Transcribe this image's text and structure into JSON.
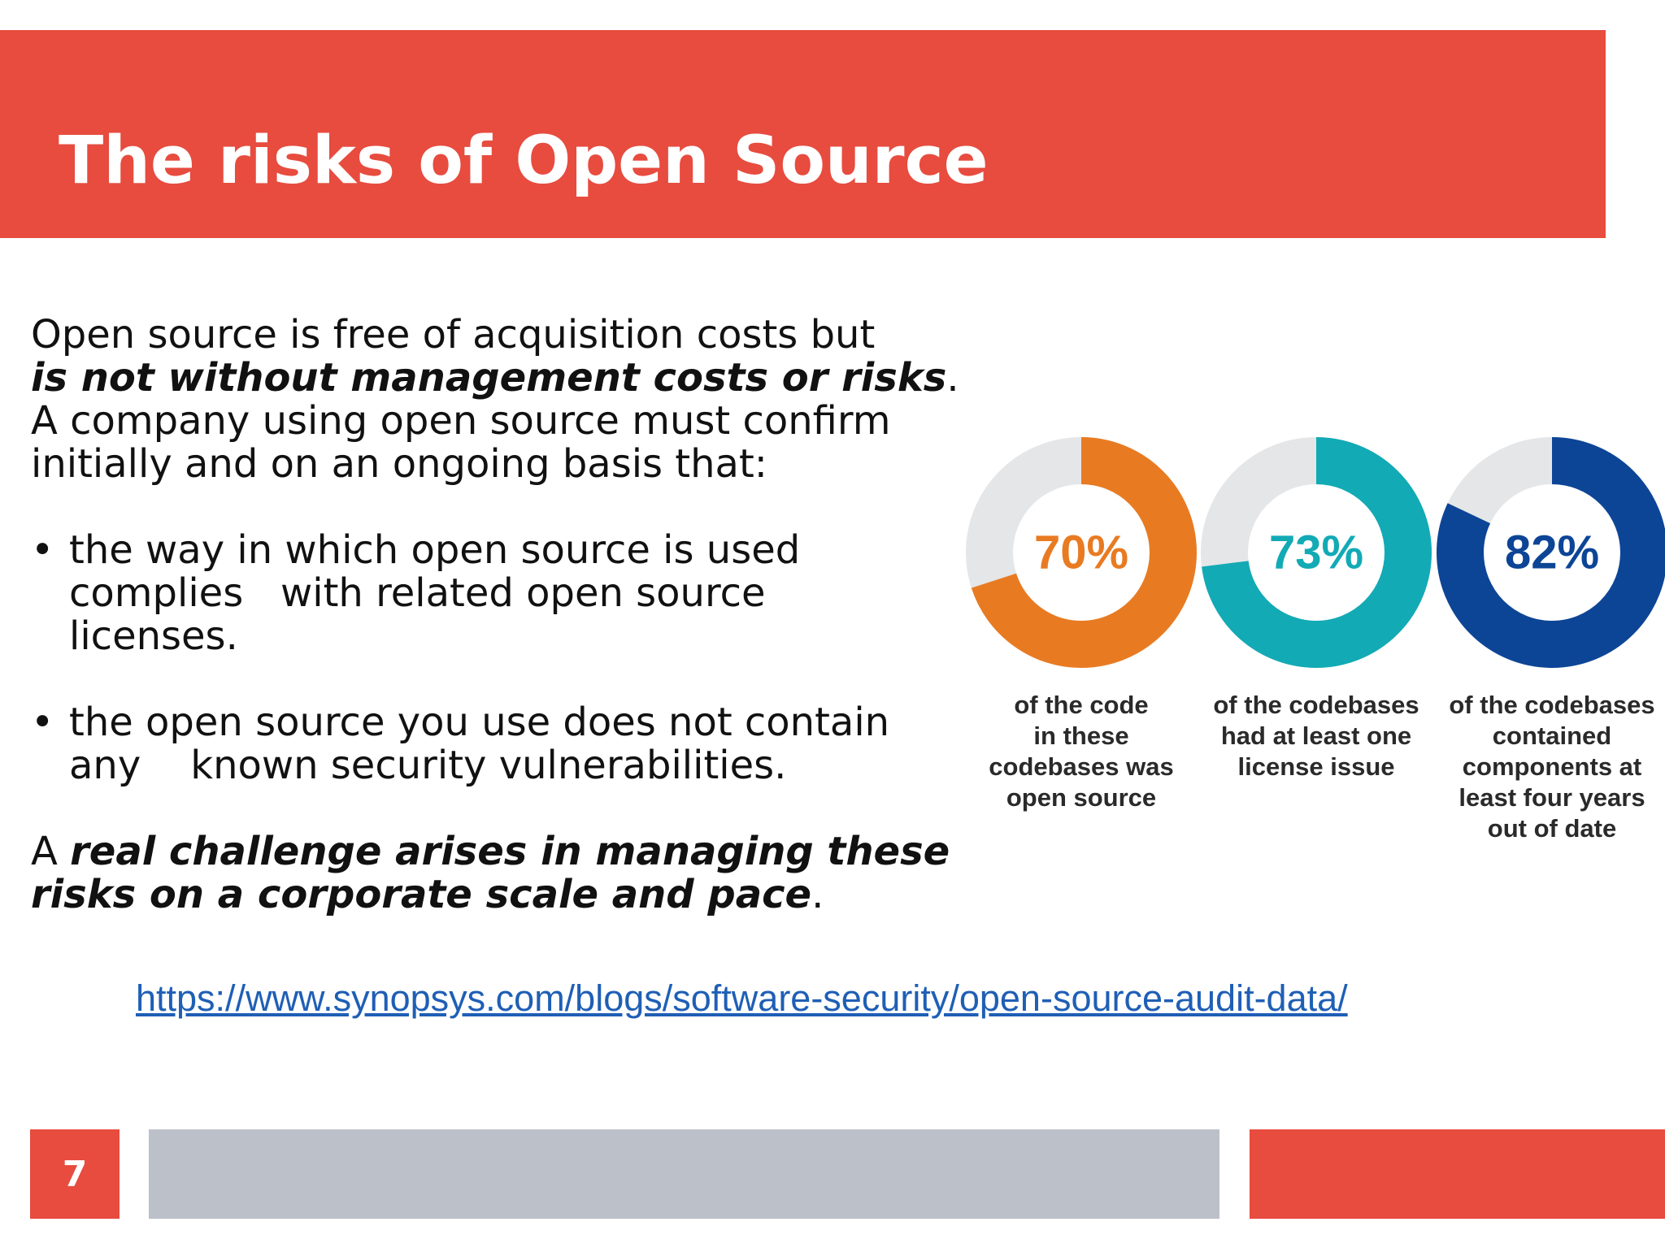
{
  "slide": {
    "title": "The risks of Open Source",
    "page_number": "7"
  },
  "body": {
    "intro_plain": "Open source is free of acquisition costs but",
    "intro_emphasis": "is not without management costs or risks",
    "intro_end": ".",
    "intro_line3": "A company using open source must confirm",
    "intro_line4": "initially and on an ongoing basis that:",
    "bullets": [
      "the way in which open source is used complies   with related open source licenses.",
      "the open source you use does not contain any    known security vulnerabilities."
    ],
    "bullet_symbol": "•",
    "closing_plain": "A ",
    "closing_emphasis": "real challenge arises in managing these risks on a corporate scale and pace",
    "closing_end": "."
  },
  "link": {
    "text": "https://www.synopsys.com/blogs/software-security/open-source-audit-data/"
  },
  "chart_data": {
    "type": "donut",
    "series": [
      {
        "label": "70%",
        "value": 70,
        "color": "#e87b22",
        "caption": "of the code\nin these\ncodebases was\nopen source"
      },
      {
        "label": "73%",
        "value": 73,
        "color": "#12aab5",
        "caption": "of the codebases\nhad at least one\nlicense issue"
      },
      {
        "label": "82%",
        "value": 82,
        "color": "#0d4596",
        "caption": "of the codebases\ncontained\ncomponents at\nleast four years\nout of date"
      }
    ],
    "track_color": "#e5e6e8"
  }
}
